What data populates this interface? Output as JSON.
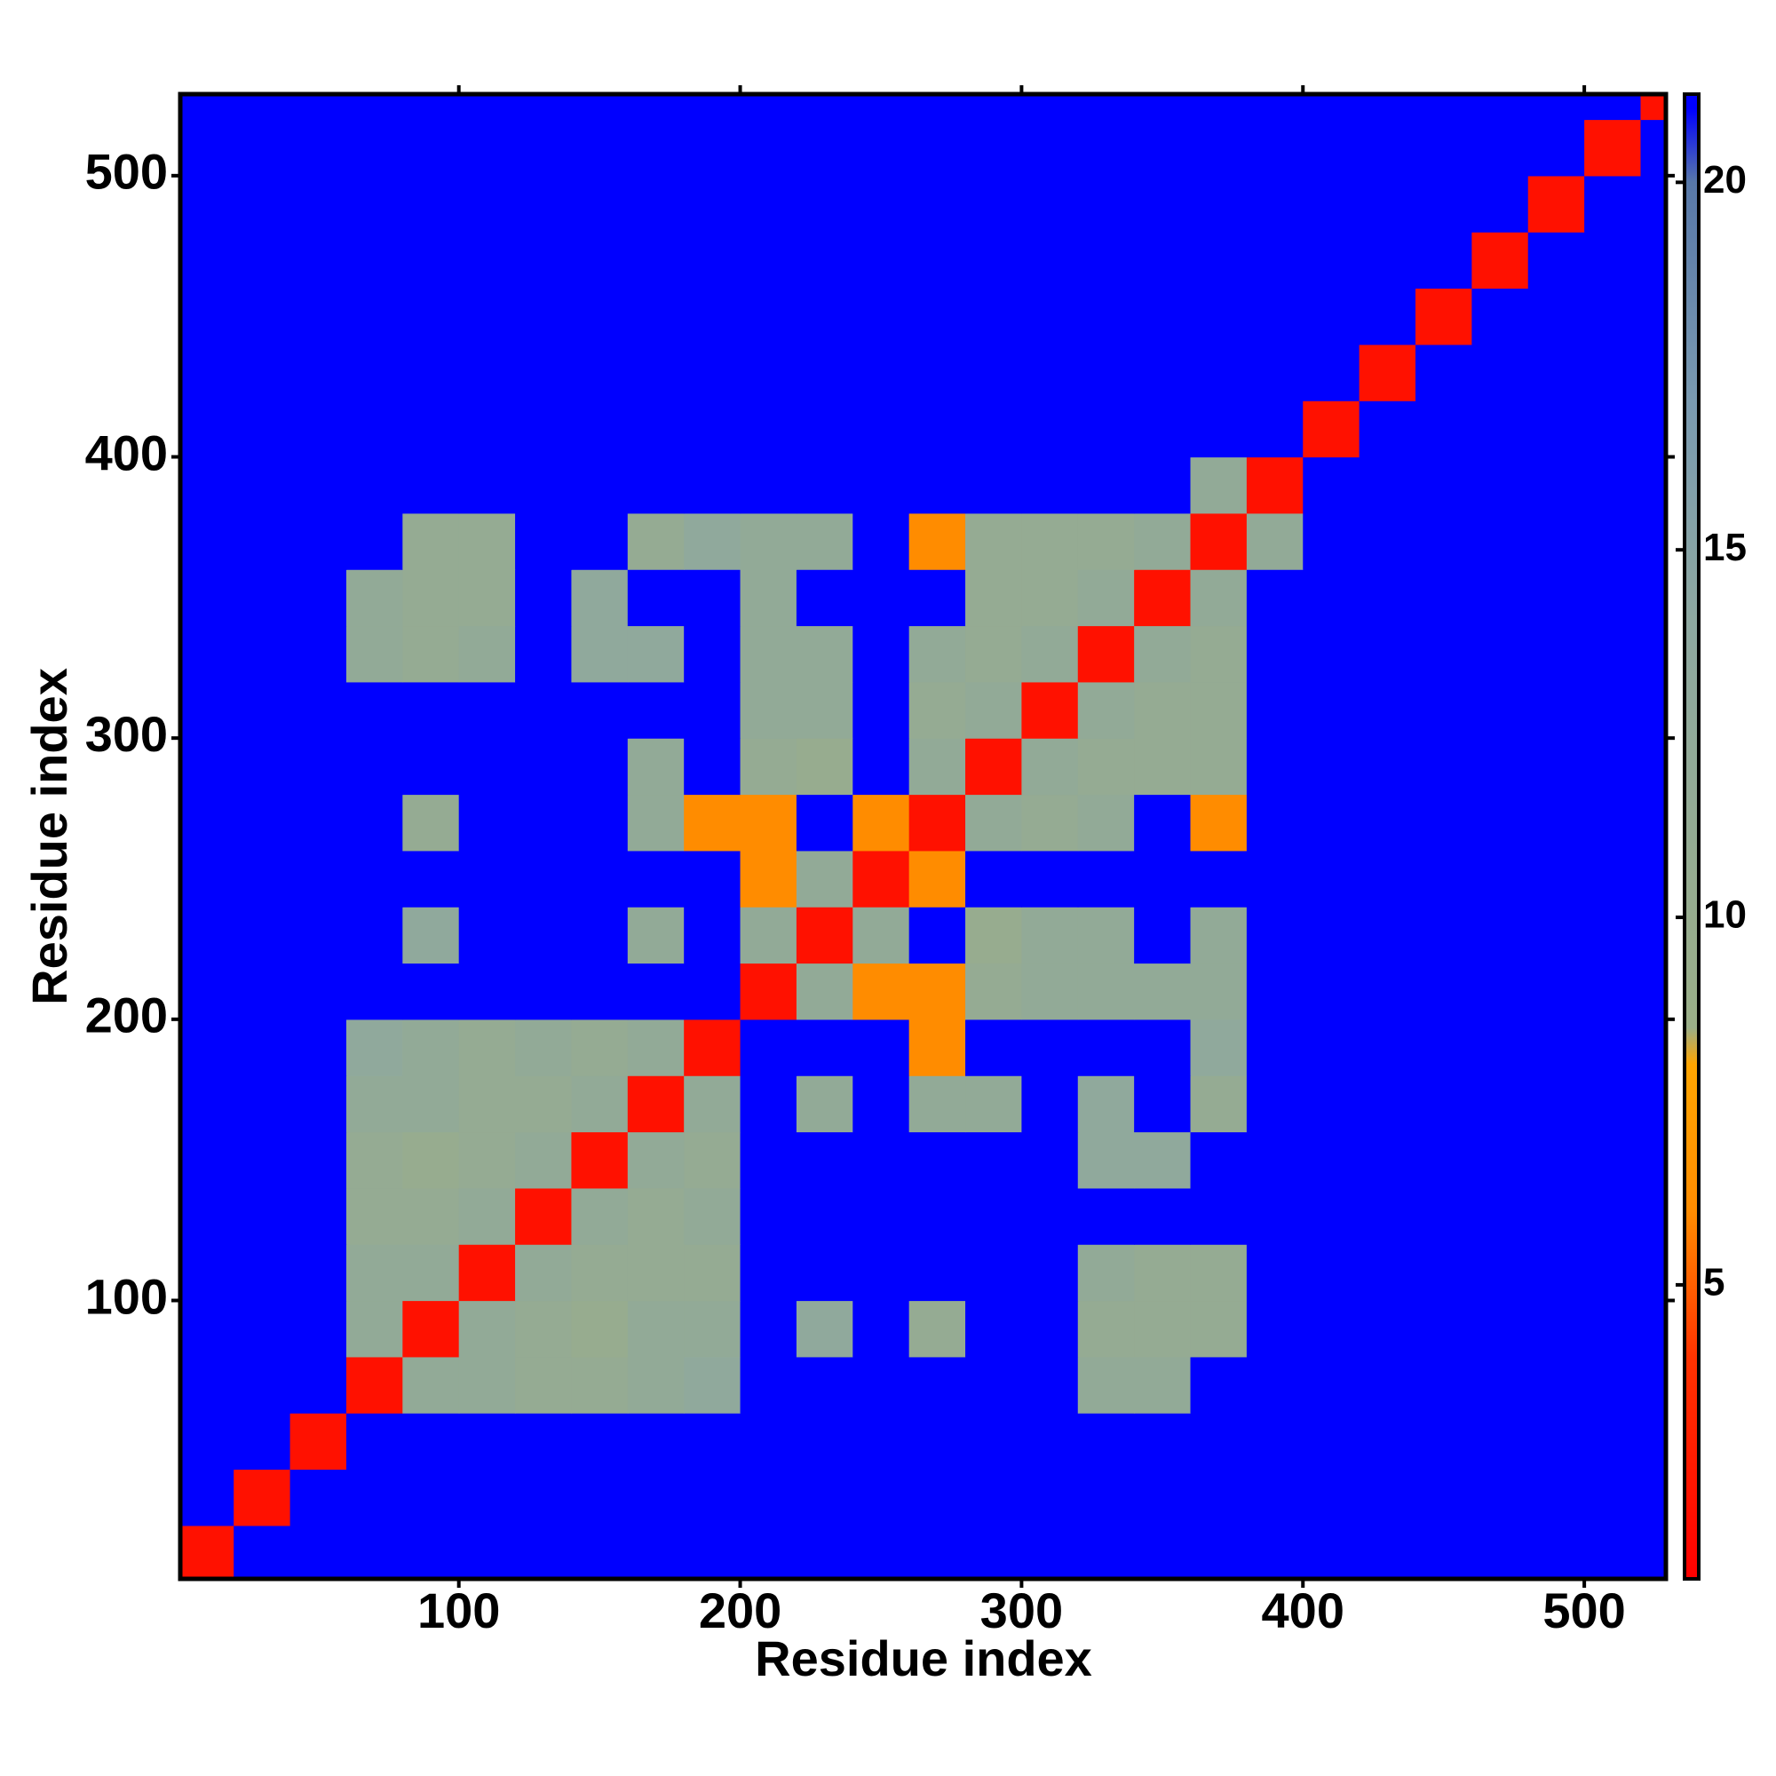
{
  "chart_data": {
    "type": "heatmap",
    "xlabel": "Residue index",
    "ylabel": "Residue index",
    "x": [
      10,
      30,
      50,
      70,
      90,
      110,
      130,
      150,
      170,
      190,
      210,
      230,
      250,
      270,
      290,
      310,
      330,
      350,
      370,
      390,
      410,
      430,
      450,
      470,
      490,
      510,
      530
    ],
    "y": [
      10,
      30,
      50,
      70,
      90,
      110,
      130,
      150,
      170,
      190,
      210,
      230,
      250,
      270,
      290,
      310,
      330,
      350,
      370,
      390,
      410,
      430,
      450,
      470,
      490,
      510,
      530
    ],
    "values": [
      [
        2,
        21,
        21,
        21,
        21,
        21,
        21,
        21,
        21,
        21,
        21,
        21,
        21,
        21,
        21,
        21,
        21,
        21,
        21,
        21,
        21,
        21,
        21,
        21,
        21,
        21,
        21
      ],
      [
        21,
        2,
        21,
        21,
        21,
        21,
        21,
        21,
        21,
        21,
        21,
        21,
        21,
        21,
        21,
        21,
        21,
        21,
        21,
        21,
        21,
        21,
        21,
        21,
        21,
        21,
        21
      ],
      [
        21,
        21,
        2,
        21,
        21,
        21,
        21,
        21,
        21,
        21,
        21,
        21,
        21,
        21,
        21,
        21,
        21,
        21,
        21,
        21,
        21,
        21,
        21,
        21,
        21,
        21,
        21
      ],
      [
        21,
        21,
        21,
        2,
        12,
        12,
        11,
        11,
        12,
        13,
        21,
        21,
        21,
        21,
        21,
        21,
        12,
        12,
        21,
        21,
        21,
        21,
        21,
        21,
        21,
        21,
        21
      ],
      [
        21,
        21,
        21,
        12,
        2,
        12,
        11,
        10,
        12,
        12,
        21,
        13,
        21,
        11,
        21,
        21,
        11,
        11,
        11,
        21,
        21,
        21,
        21,
        21,
        21,
        21,
        21
      ],
      [
        21,
        21,
        21,
        12,
        12,
        2,
        12,
        11,
        11,
        11,
        21,
        21,
        21,
        21,
        21,
        21,
        12,
        11,
        11,
        21,
        21,
        21,
        21,
        21,
        21,
        21,
        21
      ],
      [
        21,
        21,
        21,
        11,
        11,
        12,
        2,
        12,
        11,
        12,
        21,
        21,
        21,
        21,
        21,
        21,
        21,
        21,
        21,
        21,
        21,
        21,
        21,
        21,
        21,
        21,
        21
      ],
      [
        21,
        21,
        21,
        11,
        10,
        11,
        12,
        2,
        12,
        11,
        21,
        21,
        21,
        21,
        21,
        21,
        13,
        13,
        21,
        21,
        21,
        21,
        21,
        21,
        21,
        21,
        21
      ],
      [
        21,
        21,
        21,
        12,
        12,
        11,
        11,
        12,
        2,
        12,
        21,
        12,
        21,
        12,
        12,
        21,
        13,
        21,
        11,
        21,
        21,
        21,
        21,
        21,
        21,
        21,
        21
      ],
      [
        21,
        21,
        21,
        13,
        12,
        11,
        12,
        11,
        12,
        2,
        21,
        21,
        21,
        6,
        21,
        21,
        21,
        21,
        13,
        21,
        21,
        21,
        21,
        21,
        21,
        21,
        21
      ],
      [
        21,
        21,
        21,
        21,
        21,
        21,
        21,
        21,
        21,
        21,
        2,
        12,
        6,
        6,
        11,
        12,
        12,
        12,
        12,
        21,
        21,
        21,
        21,
        21,
        21,
        21,
        21
      ],
      [
        21,
        21,
        21,
        21,
        13,
        21,
        21,
        21,
        12,
        21,
        12,
        2,
        12,
        21,
        10,
        12,
        12,
        21,
        12,
        21,
        21,
        21,
        21,
        21,
        21,
        21,
        21
      ],
      [
        21,
        21,
        21,
        21,
        21,
        21,
        21,
        21,
        21,
        21,
        6,
        12,
        2,
        6,
        21,
        21,
        21,
        21,
        21,
        21,
        21,
        21,
        21,
        21,
        21,
        21,
        21
      ],
      [
        21,
        21,
        21,
        21,
        11,
        21,
        21,
        21,
        12,
        6,
        6,
        21,
        6,
        2,
        12,
        11,
        12,
        21,
        6,
        21,
        21,
        21,
        21,
        21,
        21,
        21,
        21
      ],
      [
        21,
        21,
        21,
        21,
        21,
        21,
        21,
        21,
        12,
        21,
        11,
        10,
        21,
        12,
        2,
        12,
        11,
        11,
        11,
        21,
        21,
        21,
        21,
        21,
        21,
        21,
        21
      ],
      [
        21,
        21,
        21,
        21,
        21,
        21,
        21,
        21,
        21,
        21,
        12,
        12,
        21,
        11,
        12,
        2,
        12,
        11,
        11,
        21,
        21,
        21,
        21,
        21,
        21,
        21,
        21
      ],
      [
        21,
        21,
        21,
        12,
        11,
        12,
        21,
        13,
        13,
        21,
        12,
        12,
        21,
        12,
        11,
        12,
        2,
        12,
        11,
        21,
        21,
        21,
        21,
        21,
        21,
        21,
        21
      ],
      [
        21,
        21,
        21,
        12,
        11,
        11,
        21,
        13,
        21,
        21,
        12,
        21,
        21,
        21,
        11,
        11,
        12,
        2,
        12,
        21,
        21,
        21,
        21,
        21,
        21,
        21,
        21
      ],
      [
        21,
        21,
        21,
        21,
        11,
        11,
        21,
        21,
        11,
        13,
        12,
        12,
        21,
        6,
        11,
        11,
        11,
        12,
        2,
        12,
        21,
        21,
        21,
        21,
        21,
        21,
        21
      ],
      [
        21,
        21,
        21,
        21,
        21,
        21,
        21,
        21,
        21,
        21,
        21,
        21,
        21,
        21,
        21,
        21,
        21,
        21,
        12,
        2,
        21,
        21,
        21,
        21,
        21,
        21,
        21
      ],
      [
        21,
        21,
        21,
        21,
        21,
        21,
        21,
        21,
        21,
        21,
        21,
        21,
        21,
        21,
        21,
        21,
        21,
        21,
        21,
        21,
        2,
        21,
        21,
        21,
        21,
        21,
        21
      ],
      [
        21,
        21,
        21,
        21,
        21,
        21,
        21,
        21,
        21,
        21,
        21,
        21,
        21,
        21,
        21,
        21,
        21,
        21,
        21,
        21,
        21,
        2,
        21,
        21,
        21,
        21,
        21
      ],
      [
        21,
        21,
        21,
        21,
        21,
        21,
        21,
        21,
        21,
        21,
        21,
        21,
        21,
        21,
        21,
        21,
        21,
        21,
        21,
        21,
        21,
        21,
        2,
        21,
        21,
        21,
        21
      ],
      [
        21,
        21,
        21,
        21,
        21,
        21,
        21,
        21,
        21,
        21,
        21,
        21,
        21,
        21,
        21,
        21,
        21,
        21,
        21,
        21,
        21,
        21,
        21,
        2,
        21,
        21,
        21
      ],
      [
        21,
        21,
        21,
        21,
        21,
        21,
        21,
        21,
        21,
        21,
        21,
        21,
        21,
        21,
        21,
        21,
        21,
        21,
        21,
        21,
        21,
        21,
        21,
        21,
        2,
        21,
        21
      ],
      [
        21,
        21,
        21,
        21,
        21,
        21,
        21,
        21,
        21,
        21,
        21,
        21,
        21,
        21,
        21,
        21,
        21,
        21,
        21,
        21,
        21,
        21,
        21,
        21,
        21,
        2,
        21
      ],
      [
        21,
        21,
        21,
        21,
        21,
        21,
        21,
        21,
        21,
        21,
        21,
        21,
        21,
        21,
        21,
        21,
        21,
        21,
        21,
        21,
        21,
        21,
        21,
        21,
        21,
        21,
        2
      ]
    ],
    "xlim": [
      1,
      529
    ],
    "ylim": [
      1,
      529
    ],
    "xticks": [
      100,
      200,
      300,
      400,
      500
    ],
    "yticks": [
      100,
      200,
      300,
      400,
      500
    ],
    "colorbar": {
      "lim": [
        1,
        21.2
      ],
      "ticks": [
        5,
        10,
        15,
        20
      ]
    },
    "colorscale": [
      [
        1,
        "#ff0000"
      ],
      [
        4,
        "#ff3300"
      ],
      [
        6,
        "#ff8c00"
      ],
      [
        8,
        "#ffa500"
      ],
      [
        8.5,
        "#9aae88"
      ],
      [
        14,
        "#8ea8a0"
      ],
      [
        17,
        "#7a9ab0"
      ],
      [
        20,
        "#5878a8"
      ],
      [
        21,
        "#0000ff"
      ]
    ]
  }
}
